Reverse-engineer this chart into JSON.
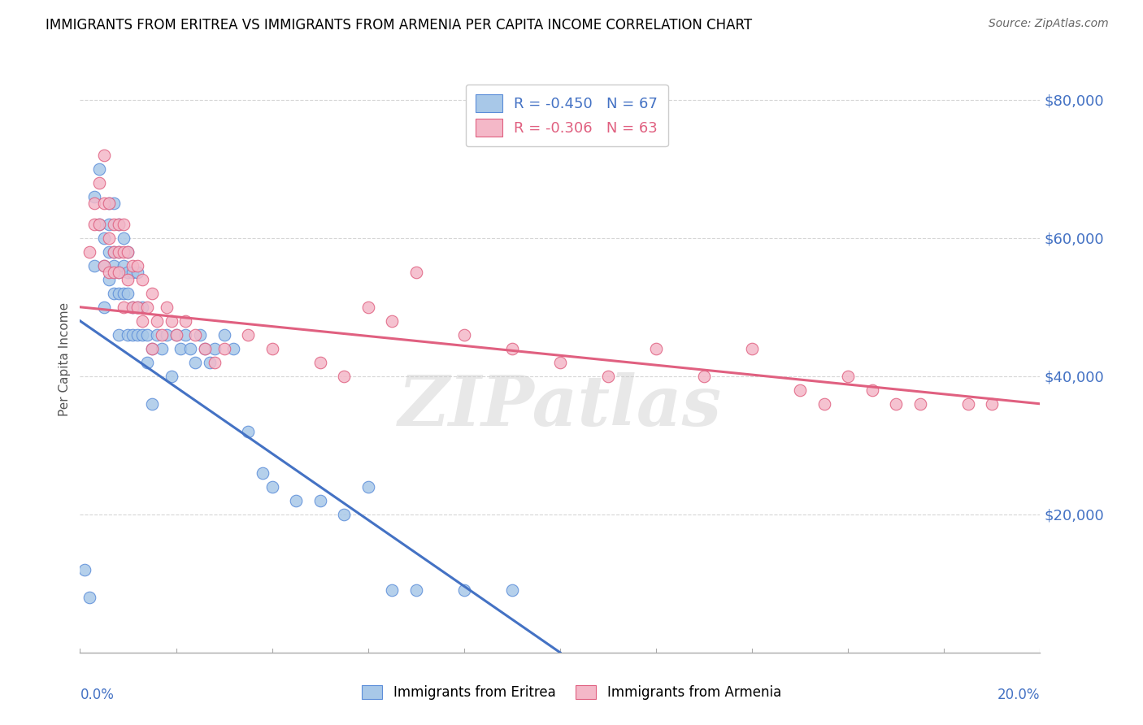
{
  "title": "IMMIGRANTS FROM ERITREA VS IMMIGRANTS FROM ARMENIA PER CAPITA INCOME CORRELATION CHART",
  "source": "Source: ZipAtlas.com",
  "ylabel": "Per Capita Income",
  "yticks": [
    0,
    20000,
    40000,
    60000,
    80000
  ],
  "xlim": [
    0.0,
    0.2
  ],
  "ylim": [
    0,
    85000
  ],
  "eritrea_color": "#a8c8e8",
  "armenia_color": "#f4b8c8",
  "eritrea_edge_color": "#5b8dd9",
  "armenia_edge_color": "#e06080",
  "eritrea_line_color": "#4472c4",
  "armenia_line_color": "#e06080",
  "legend_R_eritrea": "R = -0.450",
  "legend_N_eritrea": "N = 67",
  "legend_R_armenia": "R = -0.306",
  "legend_N_armenia": "N = 63",
  "eritrea_scatter_x": [
    0.001,
    0.002,
    0.003,
    0.003,
    0.004,
    0.004,
    0.005,
    0.005,
    0.005,
    0.006,
    0.006,
    0.006,
    0.006,
    0.007,
    0.007,
    0.007,
    0.007,
    0.008,
    0.008,
    0.008,
    0.008,
    0.008,
    0.009,
    0.009,
    0.009,
    0.01,
    0.01,
    0.01,
    0.01,
    0.011,
    0.011,
    0.011,
    0.012,
    0.012,
    0.012,
    0.013,
    0.013,
    0.014,
    0.014,
    0.015,
    0.015,
    0.016,
    0.017,
    0.018,
    0.019,
    0.02,
    0.021,
    0.022,
    0.023,
    0.024,
    0.025,
    0.026,
    0.027,
    0.028,
    0.03,
    0.032,
    0.035,
    0.038,
    0.04,
    0.045,
    0.05,
    0.055,
    0.06,
    0.065,
    0.07,
    0.08,
    0.09
  ],
  "eritrea_scatter_y": [
    12000,
    8000,
    66000,
    56000,
    62000,
    70000,
    60000,
    56000,
    50000,
    65000,
    62000,
    58000,
    54000,
    65000,
    58000,
    56000,
    52000,
    62000,
    58000,
    55000,
    52000,
    46000,
    60000,
    56000,
    52000,
    58000,
    55000,
    52000,
    46000,
    55000,
    50000,
    46000,
    55000,
    50000,
    46000,
    50000,
    46000,
    46000,
    42000,
    44000,
    36000,
    46000,
    44000,
    46000,
    40000,
    46000,
    44000,
    46000,
    44000,
    42000,
    46000,
    44000,
    42000,
    44000,
    46000,
    44000,
    32000,
    26000,
    24000,
    22000,
    22000,
    20000,
    24000,
    9000,
    9000,
    9000,
    9000
  ],
  "armenia_scatter_x": [
    0.002,
    0.003,
    0.003,
    0.004,
    0.004,
    0.005,
    0.005,
    0.005,
    0.006,
    0.006,
    0.006,
    0.007,
    0.007,
    0.007,
    0.008,
    0.008,
    0.008,
    0.009,
    0.009,
    0.009,
    0.01,
    0.01,
    0.011,
    0.011,
    0.012,
    0.012,
    0.013,
    0.013,
    0.014,
    0.015,
    0.015,
    0.016,
    0.017,
    0.018,
    0.019,
    0.02,
    0.022,
    0.024,
    0.026,
    0.028,
    0.03,
    0.035,
    0.04,
    0.05,
    0.055,
    0.06,
    0.065,
    0.07,
    0.08,
    0.09,
    0.1,
    0.11,
    0.12,
    0.13,
    0.14,
    0.15,
    0.155,
    0.16,
    0.165,
    0.17,
    0.175,
    0.185,
    0.19
  ],
  "armenia_scatter_y": [
    58000,
    65000,
    62000,
    68000,
    62000,
    72000,
    65000,
    56000,
    65000,
    60000,
    55000,
    62000,
    58000,
    55000,
    62000,
    58000,
    55000,
    62000,
    58000,
    50000,
    58000,
    54000,
    56000,
    50000,
    56000,
    50000,
    54000,
    48000,
    50000,
    52000,
    44000,
    48000,
    46000,
    50000,
    48000,
    46000,
    48000,
    46000,
    44000,
    42000,
    44000,
    46000,
    44000,
    42000,
    40000,
    50000,
    48000,
    55000,
    46000,
    44000,
    42000,
    40000,
    44000,
    40000,
    44000,
    38000,
    36000,
    40000,
    38000,
    36000,
    36000,
    36000,
    36000
  ],
  "eritrea_trendline_x": [
    0.0,
    0.1
  ],
  "eritrea_trendline_y": [
    48000,
    0
  ],
  "armenia_trendline_x": [
    0.0,
    0.2
  ],
  "armenia_trendline_y": [
    50000,
    36000
  ],
  "watermark": "ZIPatlas",
  "background_color": "#ffffff",
  "grid_color": "#cccccc",
  "title_color": "#000000",
  "axis_label_color": "#4472c4",
  "source_color": "#666666"
}
